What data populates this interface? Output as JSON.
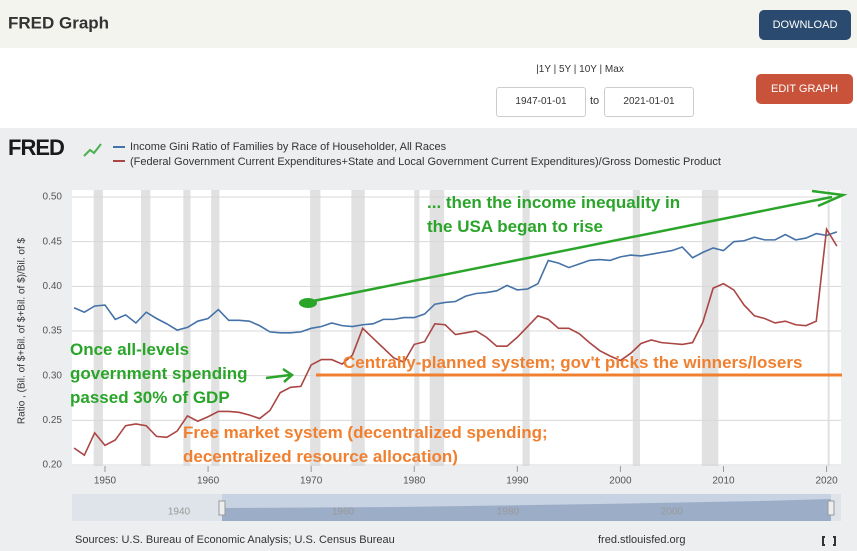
{
  "header": {
    "title": "FRED Graph",
    "download": "DOWNLOAD"
  },
  "controls": {
    "ranges": "|1Y | 5Y | 10Y | Max",
    "start": "1947-01-01",
    "to": "to",
    "end": "2021-01-01",
    "edit": "EDIT GRAPH"
  },
  "chart_data": {
    "type": "line",
    "logo": "FRED",
    "y_label": "Ratio , (Bil. of $+Bil. of $+Bil. of $)/Bil. of $",
    "x": [
      1947,
      1948,
      1949,
      1950,
      1951,
      1952,
      1953,
      1954,
      1955,
      1956,
      1957,
      1958,
      1959,
      1960,
      1961,
      1962,
      1963,
      1964,
      1965,
      1966,
      1967,
      1968,
      1969,
      1970,
      1971,
      1972,
      1973,
      1974,
      1975,
      1976,
      1977,
      1978,
      1979,
      1980,
      1981,
      1982,
      1983,
      1984,
      1985,
      1986,
      1987,
      1988,
      1989,
      1990,
      1991,
      1992,
      1993,
      1994,
      1995,
      1996,
      1997,
      1998,
      1999,
      2000,
      2001,
      2002,
      2003,
      2004,
      2005,
      2006,
      2007,
      2008,
      2009,
      2010,
      2011,
      2012,
      2013,
      2014,
      2015,
      2016,
      2017,
      2018,
      2019,
      2020,
      2021
    ],
    "series": [
      {
        "name": "Income Gini Ratio of Families by Race of Householder, All Races",
        "color": "#4572a7",
        "values": [
          0.376,
          0.371,
          0.378,
          0.379,
          0.363,
          0.368,
          0.359,
          0.371,
          0.364,
          0.358,
          0.351,
          0.354,
          0.361,
          0.364,
          0.374,
          0.362,
          0.362,
          0.361,
          0.356,
          0.349,
          0.348,
          0.348,
          0.349,
          0.353,
          0.355,
          0.359,
          0.356,
          0.355,
          0.357,
          0.358,
          0.363,
          0.363,
          0.365,
          0.365,
          0.369,
          0.38,
          0.382,
          0.383,
          0.389,
          0.392,
          0.393,
          0.395,
          0.401,
          0.396,
          0.397,
          0.403,
          0.429,
          0.426,
          0.421,
          0.425,
          0.429,
          0.43,
          0.429,
          0.433,
          0.435,
          0.434,
          0.436,
          0.438,
          0.44,
          0.444,
          0.432,
          0.438,
          0.443,
          0.44,
          0.45,
          0.451,
          0.455,
          0.452,
          0.452,
          0.458,
          0.452,
          0.454,
          0.459,
          0.457,
          0.461
        ]
      },
      {
        "name": "(Federal Government Current Expenditures+State and Local Government Current Expenditures)/Gross Domestic Product",
        "color": "#aa4643",
        "values": [
          0.219,
          0.211,
          0.236,
          0.222,
          0.228,
          0.244,
          0.246,
          0.244,
          0.232,
          0.231,
          0.238,
          0.255,
          0.249,
          0.254,
          0.26,
          0.26,
          0.259,
          0.256,
          0.252,
          0.261,
          0.281,
          0.287,
          0.288,
          0.312,
          0.318,
          0.318,
          0.313,
          0.323,
          0.353,
          0.342,
          0.331,
          0.32,
          0.315,
          0.335,
          0.338,
          0.358,
          0.357,
          0.346,
          0.348,
          0.35,
          0.343,
          0.333,
          0.333,
          0.343,
          0.355,
          0.367,
          0.363,
          0.353,
          0.353,
          0.347,
          0.337,
          0.328,
          0.322,
          0.317,
          0.325,
          0.336,
          0.34,
          0.337,
          0.336,
          0.335,
          0.337,
          0.36,
          0.398,
          0.403,
          0.396,
          0.379,
          0.367,
          0.364,
          0.359,
          0.361,
          0.357,
          0.356,
          0.361,
          0.464,
          0.445
        ]
      }
    ],
    "xlim": [
      1946.8,
      2021.4
    ],
    "xticks": [
      1950,
      1960,
      1970,
      1980,
      1990,
      2000,
      2010,
      2020
    ],
    "ylim": [
      0.2,
      0.5
    ],
    "yticks": [
      {
        "value": 0.2,
        "label": "0.20"
      },
      {
        "value": 0.25,
        "label": "0.25"
      },
      {
        "value": 0.3,
        "label": "0.30"
      },
      {
        "value": 0.35,
        "label": "0.35"
      },
      {
        "value": 0.4,
        "label": "0.40"
      },
      {
        "value": 0.45,
        "label": "0.45"
      },
      {
        "value": 0.5,
        "label": "0.50"
      }
    ],
    "grid": true,
    "shaded_periods": [
      [
        1948.9,
        1949.8
      ],
      [
        1953.5,
        1954.4
      ],
      [
        1957.6,
        1958.3
      ],
      [
        1960.3,
        1961.1
      ],
      [
        1969.9,
        1970.9
      ],
      [
        1973.9,
        1975.2
      ],
      [
        1980.0,
        1980.5
      ],
      [
        1981.5,
        1982.9
      ],
      [
        1990.5,
        1991.2
      ],
      [
        2001.2,
        2001.9
      ],
      [
        2007.9,
        2009.5
      ],
      [
        2020.1,
        2020.3
      ]
    ],
    "annotations": [
      "... then the income inequality in the USA began to rise",
      "Once all-levels government spending passed 30% of GDP",
      "Centrally-planned system; gov't picks the winners/losers",
      "Free market system (decentralized spending; decentralized resource allocation)"
    ]
  },
  "navigator": {
    "labels": [
      "1940",
      "1960",
      "1980",
      "2000"
    ]
  },
  "footer": {
    "sources": "Sources: U.S. Bureau of Economic Analysis; U.S. Census Bureau",
    "site": "fred.stlouisfed.org"
  }
}
